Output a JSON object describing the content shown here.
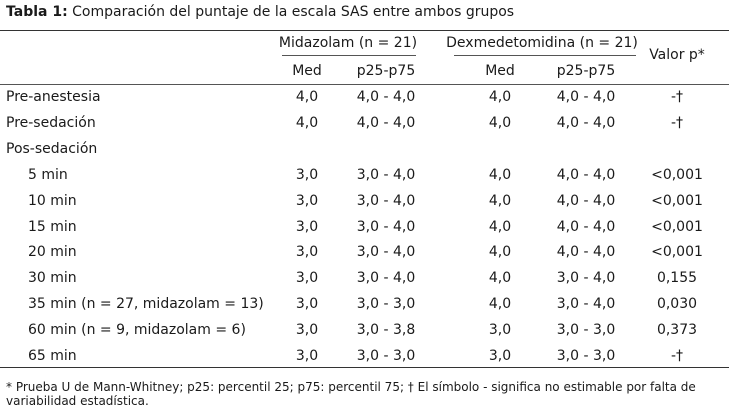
{
  "caption": {
    "label": "Tabla 1:",
    "text": "Comparación del puntaje de la escala SAS entre ambos grupos"
  },
  "header": {
    "group1": "Midazolam (n = 21)",
    "group2": "Dexmedetomidina (n = 21)",
    "pvalue": "Valor p*",
    "med": "Med",
    "range": "p25-p75"
  },
  "rows": [
    {
      "label": "Pre-anestesia",
      "indent": false,
      "m_med": "4,0",
      "m_rng": "4,0 - 4,0",
      "d_med": "4,0",
      "d_rng": "4,0 - 4,0",
      "p": "-†"
    },
    {
      "label": "Pre-sedación",
      "indent": false,
      "m_med": "4,0",
      "m_rng": "4,0 - 4,0",
      "d_med": "4,0",
      "d_rng": "4,0 - 4,0",
      "p": "-†"
    },
    {
      "label": "Pos-sedación",
      "indent": false,
      "m_med": "",
      "m_rng": "",
      "d_med": "",
      "d_rng": "",
      "p": ""
    },
    {
      "label": "5 min",
      "indent": true,
      "m_med": "3,0",
      "m_rng": "3,0 - 4,0",
      "d_med": "4,0",
      "d_rng": "4,0 - 4,0",
      "p": "<0,001"
    },
    {
      "label": "10 min",
      "indent": true,
      "m_med": "3,0",
      "m_rng": "3,0 - 4,0",
      "d_med": "4,0",
      "d_rng": "4,0 - 4,0",
      "p": "<0,001"
    },
    {
      "label": "15 min",
      "indent": true,
      "m_med": "3,0",
      "m_rng": "3,0 - 4,0",
      "d_med": "4,0",
      "d_rng": "4,0 - 4,0",
      "p": "<0,001"
    },
    {
      "label": "20 min",
      "indent": true,
      "m_med": "3,0",
      "m_rng": "3,0 - 4,0",
      "d_med": "4,0",
      "d_rng": "4,0 - 4,0",
      "p": "<0,001"
    },
    {
      "label": "30 min",
      "indent": true,
      "m_med": "3,0",
      "m_rng": "3,0 - 4,0",
      "d_med": "4,0",
      "d_rng": "3,0 - 4,0",
      "p": "0,155"
    },
    {
      "label": "35 min (n = 27, midazolam = 13)",
      "indent": true,
      "m_med": "3,0",
      "m_rng": "3,0 - 3,0",
      "d_med": "4,0",
      "d_rng": "3,0 - 4,0",
      "p": "0,030"
    },
    {
      "label": "60 min (n = 9, midazolam = 6)",
      "indent": true,
      "m_med": "3,0",
      "m_rng": "3,0 - 3,8",
      "d_med": "3,0",
      "d_rng": "3,0 - 3,0",
      "p": "0,373"
    },
    {
      "label": "65 min",
      "indent": true,
      "m_med": "3,0",
      "m_rng": "3,0 - 3,0",
      "d_med": "3,0",
      "d_rng": "3,0 - 3,0",
      "p": "-†"
    }
  ],
  "footnote": "* Prueba U de Mann-Whitney; p25: percentil 25; p75: percentil 75; † El símbolo - significa no estimable por falta de variabilidad estadística."
}
